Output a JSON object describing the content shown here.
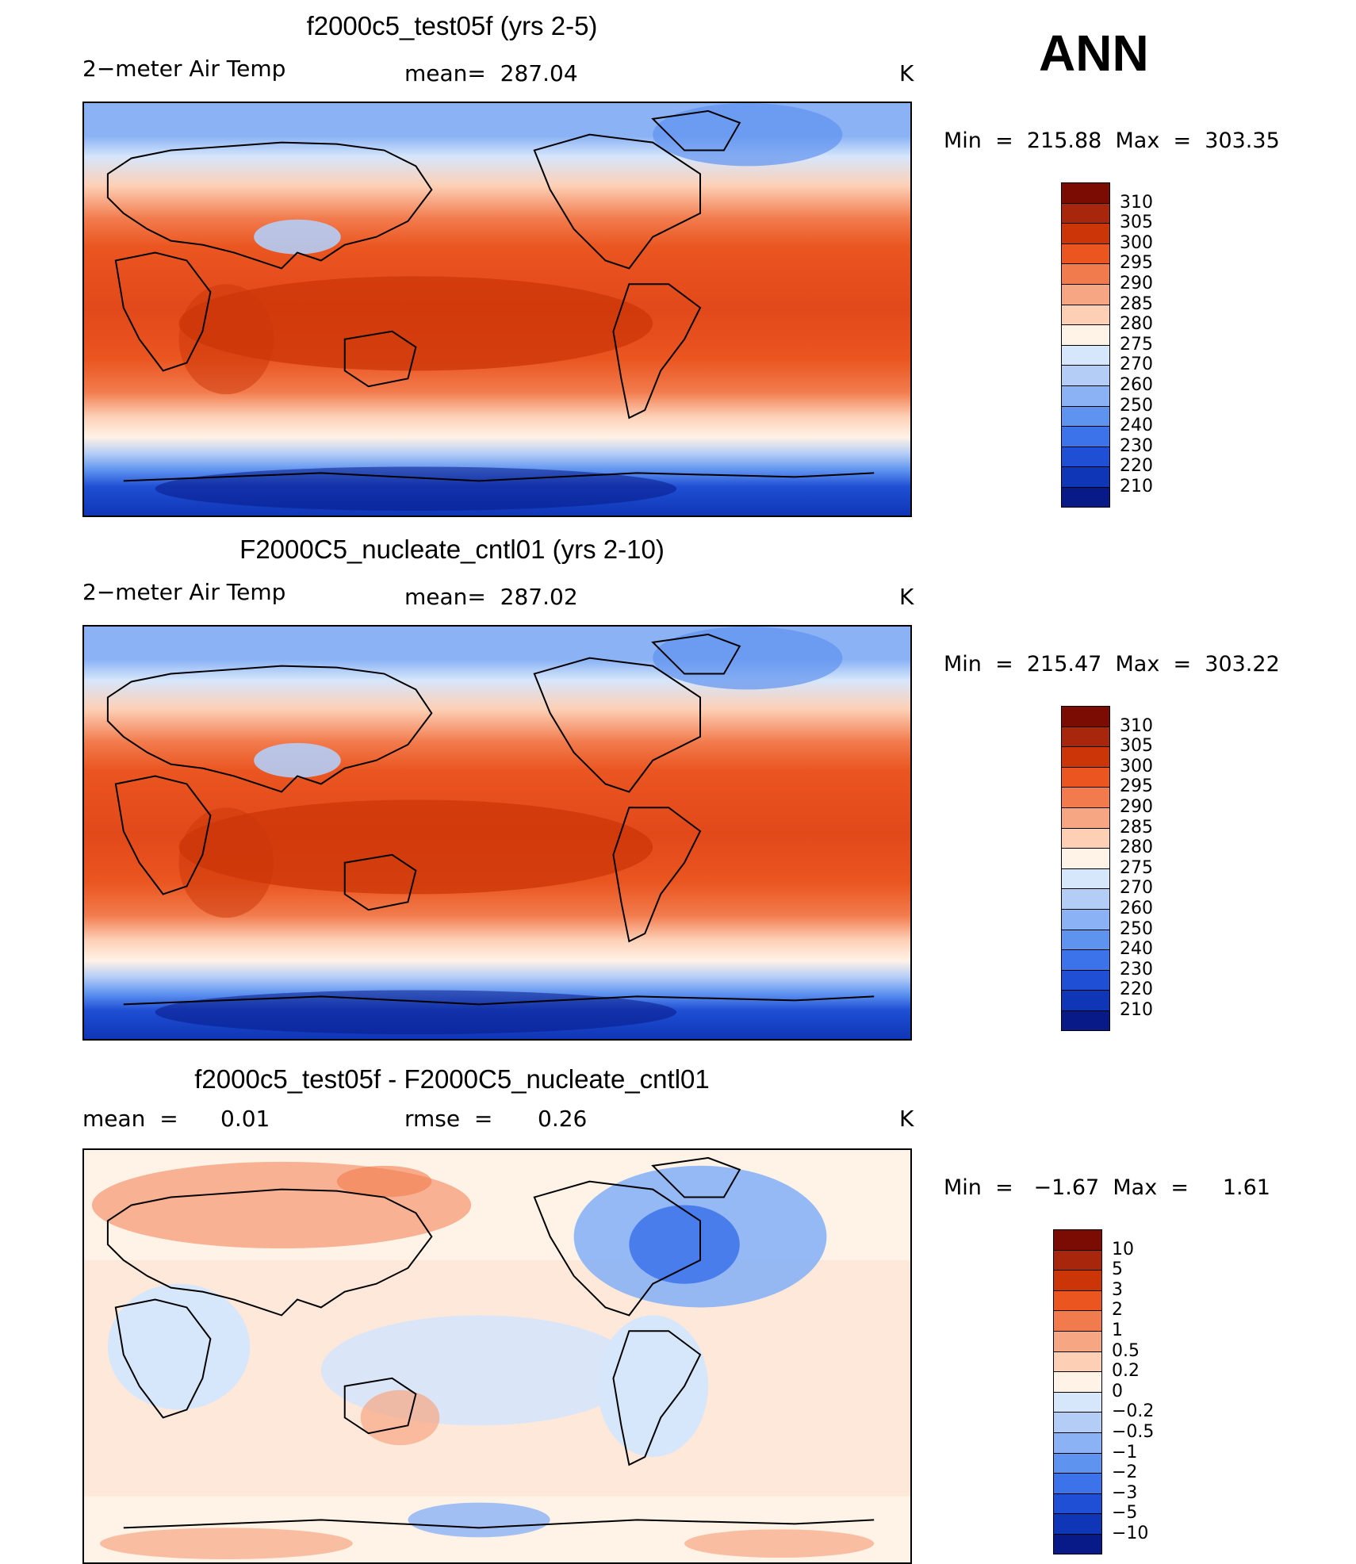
{
  "figure": {
    "season": "ANN",
    "coastline_color": "#000000"
  },
  "panels": [
    {
      "title": "f2000c5_test05f (yrs 2-5)",
      "left_label": "2−meter Air Temp",
      "center_label": "mean=  287.04",
      "units": "K",
      "stats": "Min  =  215.88  Max  =  303.35",
      "colorbar": [
        "310",
        "305",
        "300",
        "295",
        "290",
        "285",
        "280",
        "275",
        "270",
        "260",
        "250",
        "240",
        "230",
        "220",
        "210"
      ],
      "colors": [
        "#7a0c04",
        "#a8260c",
        "#cc3508",
        "#ea5520",
        "#f27b4d",
        "#f7a683",
        "#fdd0b6",
        "#fff2e6",
        "#d6e6fb",
        "#b4cdf6",
        "#8ab2f5",
        "#5f93f0",
        "#3c72ea",
        "#1f4fd4",
        "#0f36b6",
        "#081a88"
      ]
    },
    {
      "title": "F2000C5_nucleate_cntl01 (yrs 2-10)",
      "left_label": "2−meter Air Temp",
      "center_label": "mean=  287.02",
      "units": "K",
      "stats": "Min  =  215.47  Max  =  303.22",
      "colorbar": [
        "310",
        "305",
        "300",
        "295",
        "290",
        "285",
        "280",
        "275",
        "270",
        "260",
        "250",
        "240",
        "230",
        "220",
        "210"
      ],
      "colors": [
        "#7a0c04",
        "#a8260c",
        "#cc3508",
        "#ea5520",
        "#f27b4d",
        "#f7a683",
        "#fdd0b6",
        "#fff2e6",
        "#d6e6fb",
        "#b4cdf6",
        "#8ab2f5",
        "#5f93f0",
        "#3c72ea",
        "#1f4fd4",
        "#0f36b6",
        "#081a88"
      ]
    },
    {
      "title": "f2000c5_test05f - F2000C5_nucleate_cntl01",
      "left_label": "mean  =",
      "left_value": "0.01",
      "center_label": "rmse  =",
      "center_value": "0.26",
      "units": "K",
      "stats": "Min  =   −1.67  Max  =     1.61",
      "colorbar": [
        "10",
        "5",
        "3",
        "2",
        "1",
        "0.5",
        "0.2",
        "0",
        "−0.2",
        "−0.5",
        "−1",
        "−2",
        "−3",
        "−5",
        "−10"
      ],
      "colors": [
        "#7a0c04",
        "#a8260c",
        "#cc3508",
        "#ea5520",
        "#f27b4d",
        "#f7a683",
        "#fdd0b6",
        "#fff2e6",
        "#d6e6fb",
        "#b4cdf6",
        "#8ab2f5",
        "#5f93f0",
        "#3c72ea",
        "#1f4fd4",
        "#0f36b6",
        "#081a88"
      ]
    }
  ]
}
